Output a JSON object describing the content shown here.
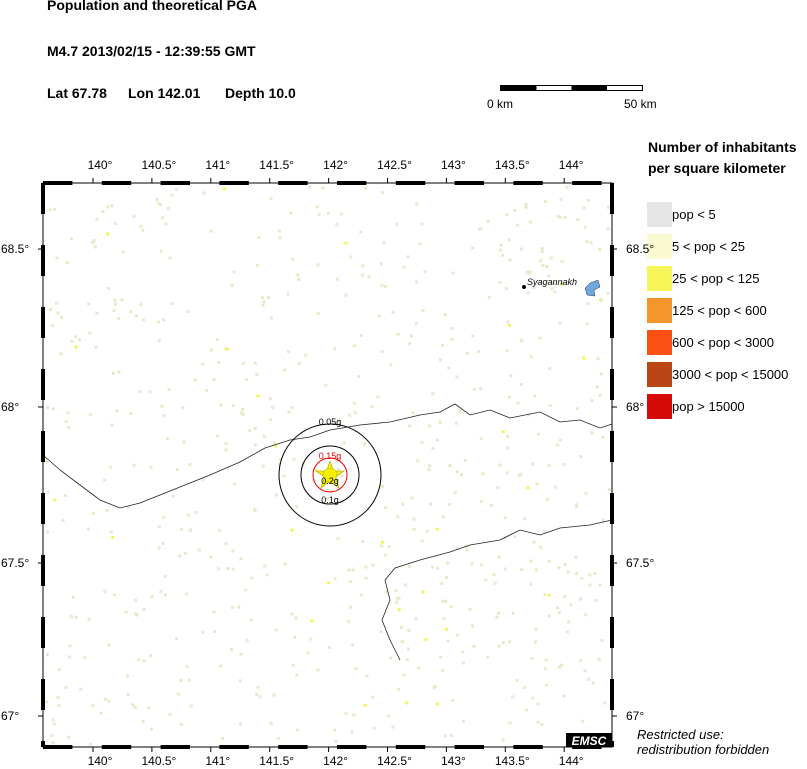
{
  "header": {
    "title": "Population and theoretical PGA",
    "event": "M4.7  2013/02/15 - 12:39:55 GMT",
    "lat": "Lat 67.78",
    "lon": "Lon 142.01",
    "depth": "Depth  10.0"
  },
  "scale_bar": {
    "start": "0 km",
    "end": "50 km"
  },
  "legend": {
    "title_line1": "Number of inhabitants",
    "title_line2": "per square kilometer",
    "items": [
      {
        "label": "pop < 5",
        "color": "#e6e6e6"
      },
      {
        "label": "5 < pop < 25",
        "color": "#fafad2"
      },
      {
        "label": "25 < pop < 125",
        "color": "#f5f55a"
      },
      {
        "label": "125 < pop < 600",
        "color": "#f5962d"
      },
      {
        "label": "600 < pop < 3000",
        "color": "#fa5014"
      },
      {
        "label": "3000 < pop < 15000",
        "color": "#b94614"
      },
      {
        "label": "pop > 15000",
        "color": "#d70a0a"
      }
    ]
  },
  "map": {
    "lon_ticks": [
      "140°",
      "140.5°",
      "141°",
      "141.5°",
      "142°",
      "142.5°",
      "143°",
      "143.5°",
      "144°"
    ],
    "lat_ticks": [
      "68.5°",
      "68°",
      "67.5°",
      "67°"
    ],
    "epicenter": {
      "lat": 67.78,
      "lon": 142.01
    },
    "pga_rings": [
      "0.05g",
      "0.1g",
      "0.15g",
      "0.2g"
    ],
    "city": "Syagannakh"
  },
  "footer": {
    "logo": "EMSC",
    "notice_line1": "Restricted use:",
    "notice_line2": "redistribution forbidden"
  }
}
